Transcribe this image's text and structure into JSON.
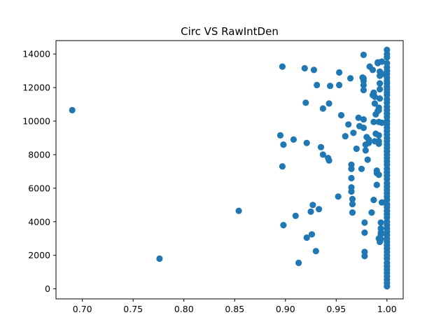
{
  "chart_data": {
    "type": "scatter",
    "title": "Circ VS RawIntDen",
    "xlabel": "",
    "ylabel": "",
    "xlim": [
      0.674,
      1.016
    ],
    "ylim": [
      -600,
      14800
    ],
    "x_ticks": [
      0.7,
      0.75,
      0.8,
      0.85,
      0.9,
      0.95,
      1.0
    ],
    "x_tick_labels": [
      "0.70",
      "0.75",
      "0.80",
      "0.85",
      "0.90",
      "0.95",
      "1.00"
    ],
    "y_ticks": [
      0,
      2000,
      4000,
      6000,
      8000,
      10000,
      12000,
      14000
    ],
    "y_tick_labels": [
      "0",
      "2000",
      "4000",
      "6000",
      "8000",
      "10000",
      "12000",
      "14000"
    ],
    "grid": false,
    "series": [
      {
        "color": "#1f77b4",
        "x": [
          0.69,
          0.776,
          0.854,
          0.895,
          0.897,
          0.897,
          0.898,
          0.898,
          0.908,
          0.91,
          0.913,
          0.919,
          0.92,
          0.921,
          0.921,
          0.925,
          0.926,
          0.927,
          0.928,
          0.93,
          0.931,
          0.933,
          0.935,
          0.937,
          0.937,
          0.942,
          0.943,
          0.943,
          0.944,
          0.952,
          0.953,
          0.953,
          0.955,
          0.959,
          0.962,
          0.964,
          0.965,
          0.965,
          0.965,
          0.965,
          0.965,
          0.966,
          0.966,
          0.966,
          0.967,
          0.97,
          0.972,
          0.973,
          0.975,
          0.976,
          0.977,
          0.977,
          0.977,
          0.977,
          0.977,
          0.977,
          0.977,
          0.978,
          0.978,
          0.978,
          0.978,
          0.979,
          0.979,
          0.98,
          0.981,
          0.982,
          0.982,
          0.983,
          0.985,
          0.986,
          0.986,
          0.987,
          0.987,
          0.987,
          0.988,
          0.988,
          0.988,
          0.989,
          0.989,
          0.99,
          0.99,
          0.99,
          0.991,
          0.991,
          0.991,
          0.992,
          0.992,
          0.992,
          0.992,
          0.992,
          0.992,
          0.992,
          0.992,
          0.993,
          0.993,
          0.993,
          0.993,
          0.993,
          0.993,
          0.994,
          0.994,
          0.994,
          0.994,
          0.994,
          0.995,
          0.995,
          0.995,
          0.995,
          1.0,
          1.0,
          1.0,
          1.0,
          1.0,
          1.0,
          1.0,
          1.0,
          1.0,
          1.0,
          1.0,
          1.0,
          1.0,
          1.0,
          1.0,
          1.0,
          1.0,
          1.0,
          1.0,
          1.0,
          1.0,
          1.0,
          1.0,
          1.0,
          1.0,
          1.0,
          1.0,
          1.0,
          1.0,
          1.0,
          1.0,
          1.0,
          1.0,
          1.0,
          1.0,
          1.0,
          1.0,
          1.0,
          1.0,
          1.0,
          1.0,
          1.0,
          1.0,
          1.0,
          1.0,
          1.0,
          1.0,
          1.0,
          1.0,
          1.0,
          1.0,
          1.0,
          1.0,
          1.0,
          1.0,
          1.0,
          1.0,
          1.0,
          1.0,
          1.0,
          1.0,
          1.0,
          1.0,
          1.0,
          1.0,
          1.0,
          1.0,
          1.0,
          1.0,
          1.0
        ],
        "y": [
          10650,
          1800,
          4650,
          9150,
          7300,
          13250,
          8600,
          3800,
          8900,
          4350,
          1550,
          13150,
          11100,
          8700,
          3050,
          4600,
          3250,
          5000,
          13050,
          2250,
          12150,
          4750,
          8450,
          8000,
          10750,
          7800,
          7650,
          11050,
          12100,
          5500,
          12150,
          12900,
          10350,
          9100,
          9800,
          12550,
          7400,
          7150,
          6600,
          6050,
          5800,
          5350,
          5050,
          4550,
          9300,
          8350,
          10200,
          9700,
          7150,
          12600,
          13950,
          12400,
          12550,
          11850,
          12150,
          10100,
          9600,
          3950,
          3350,
          2200,
          1950,
          8600,
          8250,
          9050,
          7700,
          8900,
          8700,
          13250,
          4550,
          11550,
          13050,
          5300,
          9950,
          11700,
          11450,
          11050,
          8800,
          10400,
          9250,
          7050,
          6900,
          6200,
          13500,
          13450,
          10600,
          10800,
          10650,
          9950,
          9150,
          8800,
          8650,
          6800,
          3000,
          12950,
          12700,
          12250,
          11900,
          11350,
          2800,
          3950,
          3600,
          3350,
          3250,
          2950,
          13550,
          12800,
          9900,
          5150,
          14250,
          14000,
          13800,
          13450,
          13200,
          13000,
          12800,
          12600,
          12400,
          12250,
          12050,
          11900,
          11700,
          11550,
          11300,
          11100,
          10850,
          10650,
          10450,
          10250,
          10000,
          9800,
          9600,
          9400,
          9200,
          9000,
          8800,
          8600,
          8400,
          8200,
          8000,
          7800,
          7600,
          7400,
          7150,
          6950,
          6750,
          6550,
          6300,
          6100,
          5900,
          5700,
          5500,
          5300,
          5050,
          4850,
          4650,
          4450,
          4250,
          4000,
          3800,
          3600,
          3400,
          3200,
          3000,
          2800,
          2600,
          2400,
          2200,
          2000,
          1800,
          1550,
          1350,
          1150,
          950,
          750,
          550,
          350,
          150,
          5000
        ]
      }
    ]
  }
}
